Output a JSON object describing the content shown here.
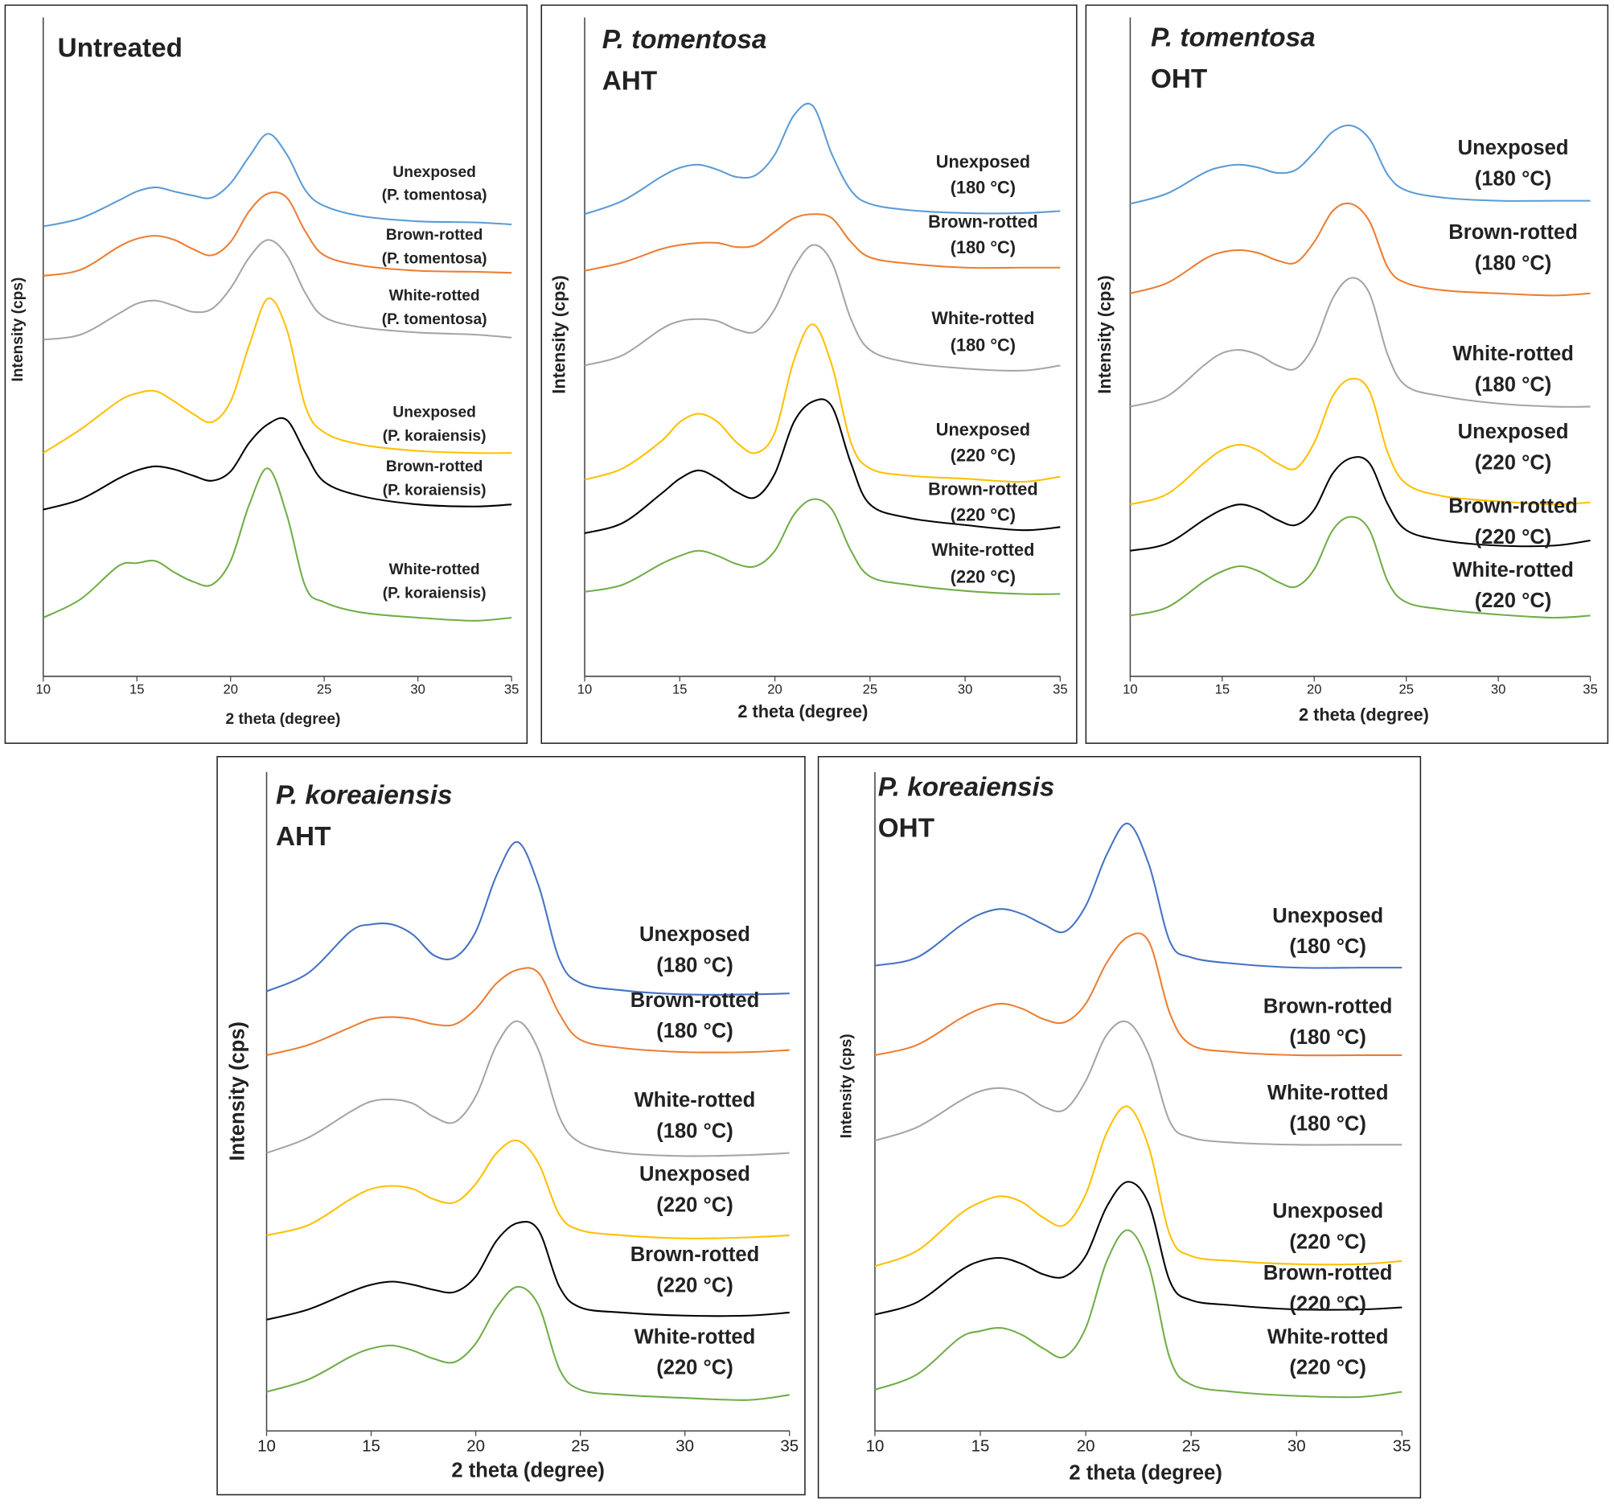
{
  "chart_data": [
    {
      "type": "line",
      "title": "Untreated",
      "title_italic": false,
      "x_label": "2 theta (degree)",
      "y_label": "Intensity (cps)",
      "x": [
        10,
        12,
        14,
        15,
        16,
        17,
        18,
        19,
        20,
        21,
        22,
        23,
        24,
        25,
        27,
        30,
        33,
        35
      ],
      "xlim": [
        10,
        35
      ],
      "xticks": [
        10,
        15,
        20,
        25,
        30,
        35
      ],
      "ylim": [
        0,
        650
      ],
      "series": [
        {
          "name": [
            "Unexposed",
            "(P. tomentosa)"
          ],
          "color": "#5b9bd5",
          "values": [
            437,
            445,
            462,
            471,
            475,
            471,
            467,
            465,
            479,
            505,
            527,
            507,
            472,
            457,
            447,
            442,
            441,
            439
          ]
        },
        {
          "name": [
            "Brown-rotted",
            "(P. tomentosa)"
          ],
          "color": "#ed7d31",
          "values": [
            389,
            395,
            417,
            425,
            428,
            424,
            415,
            409,
            422,
            452,
            469,
            465,
            432,
            409,
            399,
            394,
            393,
            392
          ]
        },
        {
          "name": [
            "White-rotted",
            "(P. tomentosa)"
          ],
          "color": "#a5a5a5",
          "values": [
            327,
            332,
            352,
            362,
            365,
            360,
            354,
            357,
            377,
            407,
            424,
            409,
            372,
            349,
            339,
            334,
            332,
            329
          ]
        },
        {
          "name": [
            "Unexposed",
            "(P. koraiensis)"
          ],
          "color": "#ffc000",
          "values": [
            217,
            240,
            267,
            275,
            277,
            267,
            255,
            247,
            267,
            322,
            367,
            337,
            262,
            237,
            225,
            219,
            217,
            217
          ]
        },
        {
          "name": [
            "Brown-rotted",
            "(P. koraiensis)"
          ],
          "color": "#000000",
          "values": [
            162,
            172,
            192,
            200,
            204,
            201,
            195,
            190,
            199,
            227,
            245,
            249,
            217,
            189,
            175,
            167,
            165,
            167
          ]
        },
        {
          "name": [
            "White-rotted",
            "(P. koraiensis)"
          ],
          "color": "#70ad47",
          "values": [
            57,
            75,
            107,
            110,
            112,
            101,
            92,
            89,
            112,
            167,
            202,
            157,
            87,
            72,
            62,
            57,
            54,
            57
          ]
        }
      ]
    },
    {
      "type": "line",
      "title": "P. tomentosa",
      "subtitle": "AHT",
      "title_italic": true,
      "x_label": "2 theta (degree)",
      "y_label": "Intensity (cps)",
      "x": [
        10,
        12,
        14,
        15,
        16,
        17,
        18,
        19,
        20,
        21,
        22,
        23,
        24,
        25,
        27,
        30,
        33,
        35
      ],
      "xlim": [
        10,
        35
      ],
      "xticks": [
        10,
        15,
        20,
        25,
        30,
        35
      ],
      "ylim": [
        0,
        650
      ],
      "series": [
        {
          "name": [
            "Unexposed",
            "(180 °C)"
          ],
          "color": "#5b9bd5",
          "values": [
            449,
            462,
            485,
            494,
            497,
            492,
            485,
            487,
            507,
            545,
            554,
            507,
            472,
            459,
            453,
            450,
            450,
            452
          ]
        },
        {
          "name": [
            "Brown-rotted",
            "(180 °C)"
          ],
          "color": "#ed7d31",
          "values": [
            394,
            402,
            415,
            419,
            421,
            421,
            417,
            419,
            432,
            445,
            449,
            445,
            422,
            407,
            401,
            397,
            397,
            397
          ]
        },
        {
          "name": [
            "White-rotted",
            "(180 °C)"
          ],
          "color": "#a5a5a5",
          "values": [
            302,
            312,
            337,
            345,
            347,
            345,
            337,
            335,
            357,
            397,
            419,
            402,
            347,
            317,
            305,
            299,
            297,
            302
          ]
        },
        {
          "name": [
            "Unexposed",
            "(220 °C)"
          ],
          "color": "#ffc000",
          "values": [
            191,
            202,
            228,
            247,
            255,
            247,
            227,
            217,
            237,
            307,
            342,
            302,
            227,
            202,
            195,
            192,
            189,
            194
          ]
        },
        {
          "name": [
            "Brown-rotted",
            "(220 °C)"
          ],
          "color": "#000000",
          "values": [
            139,
            149,
            177,
            192,
            200,
            192,
            179,
            174,
            197,
            247,
            267,
            262,
            207,
            167,
            154,
            147,
            142,
            145
          ]
        },
        {
          "name": [
            "White-rotted",
            "(220 °C)"
          ],
          "color": "#70ad47",
          "values": [
            82,
            89,
            109,
            117,
            122,
            117,
            109,
            107,
            122,
            157,
            172,
            162,
            122,
            97,
            89,
            83,
            80,
            80
          ]
        }
      ]
    },
    {
      "type": "line",
      "title": "P. tomentosa",
      "subtitle": "OHT",
      "title_italic": true,
      "x_label": "2 theta (degree)",
      "y_label": "Intensity (cps)",
      "x": [
        10,
        12,
        14,
        15,
        16,
        17,
        18,
        19,
        20,
        21,
        22,
        23,
        24,
        25,
        27,
        30,
        33,
        35
      ],
      "xlim": [
        10,
        35
      ],
      "xticks": [
        10,
        15,
        20,
        25,
        30,
        35
      ],
      "ylim": [
        0,
        650
      ],
      "series": [
        {
          "name": [
            "Unexposed",
            "(180 °C)"
          ],
          "color": "#5b9bd5",
          "values": [
            459,
            469,
            489,
            495,
            497,
            494,
            489,
            492,
            509,
            529,
            535,
            522,
            487,
            472,
            465,
            462,
            462,
            462
          ]
        },
        {
          "name": [
            "Brown-rotted",
            "(180 °C)"
          ],
          "color": "#ed7d31",
          "values": [
            372,
            382,
            405,
            412,
            414,
            411,
            404,
            402,
            422,
            452,
            459,
            442,
            397,
            382,
            375,
            372,
            370,
            372
          ]
        },
        {
          "name": [
            "White-rotted",
            "(180 °C)"
          ],
          "color": "#a5a5a5",
          "values": [
            262,
            272,
            302,
            314,
            317,
            312,
            302,
            299,
            322,
            367,
            387,
            372,
            312,
            282,
            272,
            265,
            262,
            262
          ]
        },
        {
          "name": [
            "Unexposed",
            "(220 °C)"
          ],
          "color": "#ffc000",
          "values": [
            167,
            177,
            207,
            220,
            225,
            219,
            207,
            202,
            227,
            272,
            289,
            277,
            217,
            187,
            175,
            170,
            167,
            169
          ]
        },
        {
          "name": [
            "Brown-rotted",
            "(220 °C)"
          ],
          "color": "#000000",
          "values": [
            122,
            129,
            152,
            162,
            167,
            162,
            152,
            147,
            162,
            197,
            212,
            207,
            167,
            142,
            132,
            127,
            127,
            132
          ]
        },
        {
          "name": [
            "White-rotted",
            "(220 °C)"
          ],
          "color": "#70ad47",
          "values": [
            59,
            67,
            92,
            102,
            107,
            102,
            92,
            87,
            104,
            142,
            155,
            142,
            92,
            72,
            65,
            60,
            57,
            59
          ]
        }
      ]
    },
    {
      "type": "line",
      "title": "P. koreaiensis",
      "subtitle": "AHT",
      "title_italic": true,
      "x_label": "2 theta (degree)",
      "y_label": "Intensity (cps)",
      "x": [
        10,
        12,
        14,
        15,
        16,
        17,
        18,
        19,
        20,
        21,
        22,
        23,
        24,
        25,
        27,
        30,
        33,
        35
      ],
      "xlim": [
        10,
        35
      ],
      "xticks": [
        10,
        15,
        20,
        25,
        30,
        35
      ],
      "ylim": [
        0,
        650
      ],
      "series": [
        {
          "name": [
            "Unexposed",
            "(180 °C)"
          ],
          "color": "#4472c4",
          "values": [
            427,
            445,
            485,
            492,
            492,
            482,
            462,
            460,
            485,
            540,
            572,
            530,
            458,
            435,
            428,
            424,
            424,
            425
          ]
        },
        {
          "name": [
            "Brown-rotted",
            "(180 °C)"
          ],
          "color": "#ed7d31",
          "values": [
            365,
            375,
            392,
            400,
            402,
            400,
            395,
            395,
            410,
            435,
            448,
            445,
            405,
            380,
            372,
            368,
            368,
            370
          ]
        },
        {
          "name": [
            "White-rotted",
            "(180 °C)"
          ],
          "color": "#a5a5a5",
          "values": [
            270,
            285,
            310,
            320,
            322,
            318,
            305,
            300,
            325,
            375,
            398,
            370,
            305,
            280,
            270,
            267,
            268,
            270
          ]
        },
        {
          "name": [
            "Unexposed",
            "(220 °C)"
          ],
          "color": "#ffc000",
          "values": [
            190,
            200,
            225,
            235,
            238,
            235,
            225,
            222,
            240,
            270,
            282,
            260,
            210,
            195,
            190,
            187,
            188,
            190
          ]
        },
        {
          "name": [
            "Brown-rotted",
            "(220 °C)"
          ],
          "color": "#000000",
          "values": [
            108,
            118,
            135,
            142,
            145,
            142,
            137,
            135,
            150,
            185,
            202,
            195,
            140,
            120,
            115,
            112,
            112,
            115
          ]
        },
        {
          "name": [
            "White-rotted",
            "(220 °C)"
          ],
          "color": "#70ad47",
          "values": [
            38,
            50,
            72,
            80,
            83,
            78,
            70,
            67,
            85,
            120,
            140,
            122,
            60,
            40,
            35,
            32,
            30,
            35
          ]
        }
      ]
    },
    {
      "type": "line",
      "title": "P. koreaiensis",
      "subtitle": "OHT",
      "title_italic": true,
      "x_label": "2 theta (degree)",
      "y_label": "Intensity (cps)",
      "x": [
        10,
        12,
        14,
        15,
        16,
        17,
        18,
        19,
        20,
        21,
        22,
        23,
        24,
        25,
        27,
        30,
        33,
        35
      ],
      "xlim": [
        10,
        35
      ],
      "xticks": [
        10,
        15,
        20,
        25,
        30,
        35
      ],
      "ylim": [
        0,
        650
      ],
      "series": [
        {
          "name": [
            "Unexposed",
            "(180 °C)"
          ],
          "color": "#4472c4",
          "values": [
            452,
            460,
            490,
            502,
            507,
            502,
            492,
            485,
            510,
            560,
            590,
            550,
            475,
            460,
            454,
            450,
            450,
            450
          ]
        },
        {
          "name": [
            "Brown-rotted",
            "(180 °C)"
          ],
          "color": "#ed7d31",
          "values": [
            365,
            375,
            400,
            410,
            415,
            410,
            400,
            397,
            415,
            455,
            480,
            475,
            405,
            375,
            368,
            365,
            365,
            365
          ]
        },
        {
          "name": [
            "White-rotted",
            "(180 °C)"
          ],
          "color": "#a5a5a5",
          "values": [
            282,
            295,
            320,
            330,
            333,
            328,
            315,
            312,
            340,
            385,
            397,
            365,
            300,
            285,
            280,
            278,
            278,
            278
          ]
        },
        {
          "name": [
            "Unexposed",
            "(220 °C)"
          ],
          "color": "#ffc000",
          "values": [
            160,
            175,
            210,
            222,
            228,
            222,
            207,
            200,
            230,
            290,
            315,
            275,
            190,
            170,
            165,
            162,
            162,
            165
          ]
        },
        {
          "name": [
            "Brown-rotted",
            "(220 °C)"
          ],
          "color": "#000000",
          "values": [
            113,
            125,
            155,
            165,
            168,
            162,
            152,
            150,
            170,
            218,
            242,
            220,
            145,
            127,
            122,
            118,
            118,
            120
          ]
        },
        {
          "name": [
            "White-rotted",
            "(220 °C)"
          ],
          "color": "#70ad47",
          "values": [
            40,
            55,
            90,
            97,
            100,
            93,
            80,
            72,
            100,
            165,
            195,
            160,
            70,
            45,
            38,
            34,
            33,
            38
          ]
        }
      ]
    }
  ]
}
